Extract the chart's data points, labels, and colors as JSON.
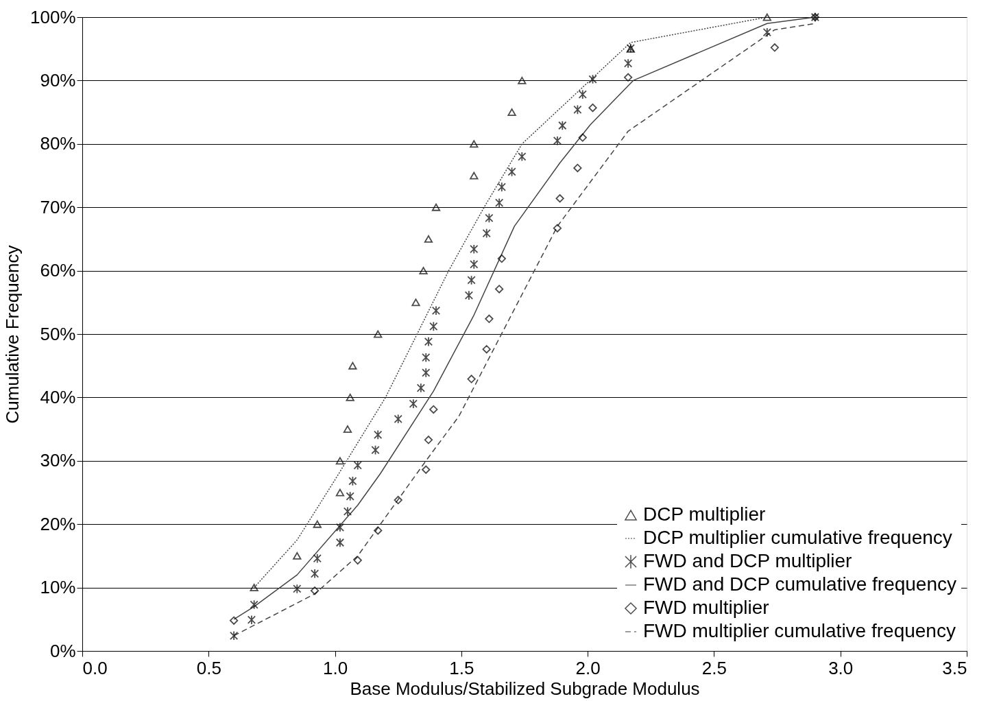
{
  "chart_data": {
    "type": "scatter",
    "xlabel": "Base Modulus/Stabilized Subgrade Modulus",
    "ylabel": "Cumulative Frequency",
    "xlim": [
      0,
      3.5
    ],
    "xticks": [
      {
        "value": 0,
        "label": "0.0"
      },
      0.5,
      {
        "value": 1,
        "label": "1.0"
      },
      1.5,
      {
        "value": 2,
        "label": "2.0"
      },
      2.5,
      {
        "value": 3,
        "label": "3.0"
      },
      3.5
    ],
    "ylim": [
      0,
      100
    ],
    "yticks": [
      {
        "value": 0,
        "label": "0%"
      },
      {
        "value": 10,
        "label": "10%"
      },
      {
        "value": 20,
        "label": "20%"
      },
      {
        "value": 30,
        "label": "30%"
      },
      {
        "value": 40,
        "label": "40%"
      },
      {
        "value": 50,
        "label": "50%"
      },
      {
        "value": 60,
        "label": "60%"
      },
      {
        "value": 70,
        "label": "70%"
      },
      {
        "value": 80,
        "label": "80%"
      },
      {
        "value": 90,
        "label": "90%"
      },
      {
        "value": 100,
        "label": "100%"
      }
    ],
    "grid": "y",
    "legend": "bottom right",
    "series": [
      {
        "name": "DCP multiplier",
        "marker": "triangle",
        "color": "#000000",
        "x": [
          0.68,
          0.85,
          0.93,
          1.02,
          1.02,
          1.05,
          1.06,
          1.07,
          1.17,
          1.32,
          1.35,
          1.37,
          1.4,
          1.55,
          1.55,
          1.7,
          1.74,
          2.17,
          2.71
        ],
        "values": [
          10,
          15,
          20,
          25,
          30,
          35,
          40,
          45,
          50,
          55,
          60,
          65,
          70,
          75,
          80,
          85,
          90,
          95,
          100
        ]
      },
      {
        "name": "DCP multiplier cumulative frequency",
        "type": "line",
        "line_style": "dotted",
        "color": "#444444",
        "x": [
          0.68,
          0.85,
          1.0,
          1.2,
          1.45,
          1.59,
          1.74,
          2.17,
          2.71
        ],
        "values": [
          10,
          17.5,
          27,
          40,
          60,
          70,
          80,
          96,
          100
        ]
      },
      {
        "name": "FWD and DCP multiplier",
        "marker": "cross",
        "color": "#000000",
        "x": [
          0.6,
          0.67,
          0.68,
          0.85,
          0.92,
          0.93,
          1.02,
          1.02,
          1.05,
          1.06,
          1.07,
          1.09,
          1.16,
          1.17,
          1.25,
          1.31,
          1.34,
          1.36,
          1.36,
          1.37,
          1.39,
          1.4,
          1.53,
          1.54,
          1.55,
          1.55,
          1.6,
          1.61,
          1.65,
          1.66,
          1.7,
          1.74,
          1.88,
          1.9,
          1.96,
          1.98,
          2.02,
          2.16,
          2.17,
          2.71,
          2.9
        ],
        "values": [
          2.4,
          4.9,
          7.3,
          9.8,
          12.2,
          14.6,
          17.1,
          19.5,
          22.0,
          24.4,
          26.8,
          29.3,
          31.7,
          34.1,
          36.6,
          39.0,
          41.5,
          43.9,
          46.3,
          48.8,
          51.2,
          53.7,
          56.1,
          58.5,
          61.0,
          63.4,
          65.9,
          68.3,
          70.7,
          73.2,
          75.6,
          78.0,
          80.5,
          82.9,
          85.4,
          87.8,
          90.2,
          92.7,
          95.1,
          97.6,
          100
        ]
      },
      {
        "name": "FWD and DCP cumulative frequency",
        "type": "line",
        "line_style": "solid",
        "color": "#444444",
        "x": [
          0.6,
          0.68,
          0.85,
          1.09,
          1.18,
          1.39,
          1.55,
          1.71,
          1.89,
          2.01,
          2.18,
          2.71,
          2.9
        ],
        "values": [
          5,
          7,
          12,
          23,
          28,
          41,
          53,
          67,
          77,
          83,
          90,
          99,
          100
        ]
      },
      {
        "name": "FWD multiplier",
        "marker": "diamond",
        "color": "#000000",
        "x": [
          0.6,
          0.92,
          1.09,
          1.17,
          1.25,
          1.36,
          1.37,
          1.39,
          1.54,
          1.6,
          1.61,
          1.65,
          1.66,
          1.88,
          1.89,
          1.96,
          1.98,
          2.02,
          2.16,
          2.74,
          2.9
        ],
        "values": [
          4.8,
          9.5,
          14.3,
          19.0,
          23.8,
          28.6,
          33.3,
          38.1,
          42.9,
          47.6,
          52.4,
          57.1,
          61.9,
          66.7,
          71.4,
          76.2,
          81.0,
          85.7,
          90.5,
          95.2,
          100
        ]
      },
      {
        "name": "FWD multiplier cumulative frequency",
        "type": "line",
        "line_style": "dashed",
        "color": "#444444",
        "x": [
          0.6,
          0.92,
          1.09,
          1.36,
          1.49,
          1.88,
          2.16,
          2.74,
          2.9
        ],
        "values": [
          2.4,
          9,
          15,
          30,
          37,
          67,
          82,
          98,
          99
        ]
      }
    ]
  }
}
